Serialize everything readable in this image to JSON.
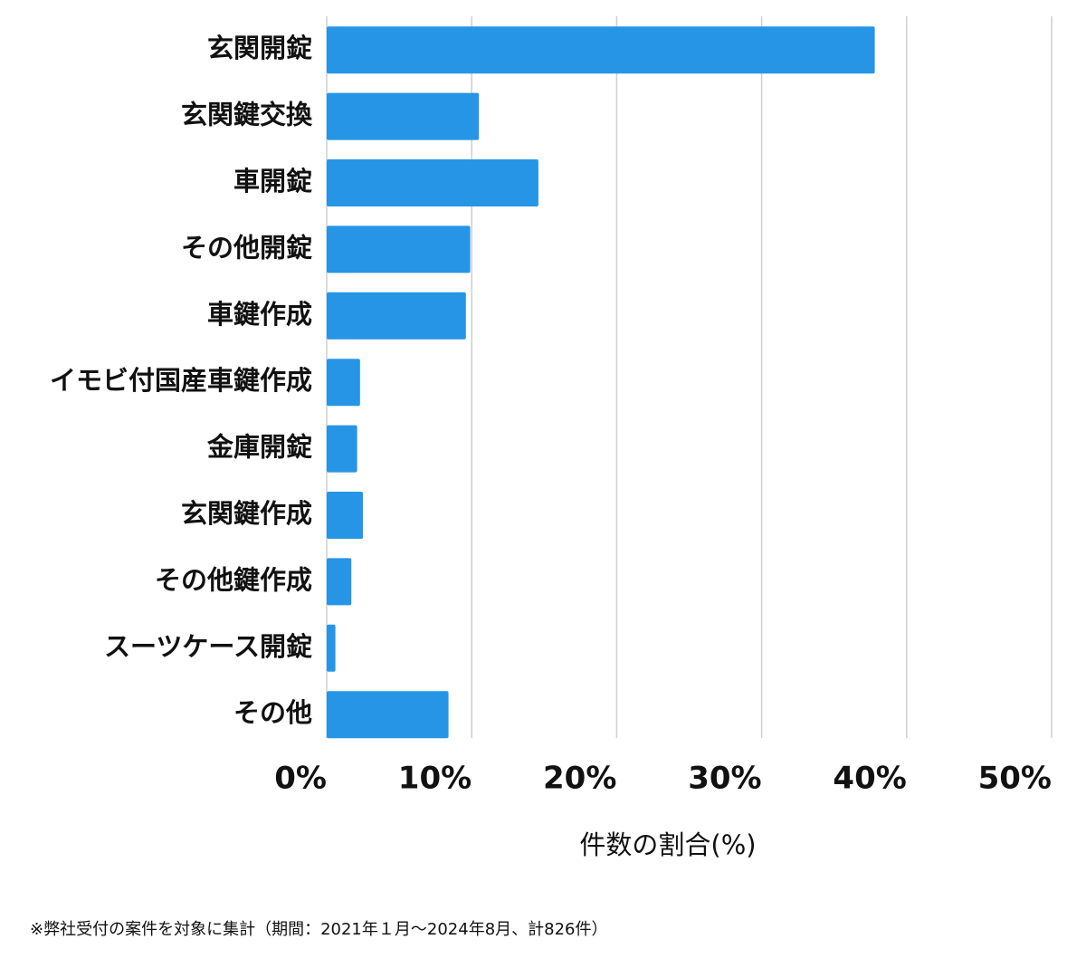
{
  "chart_data": {
    "type": "bar",
    "orientation": "horizontal",
    "categories": [
      "玄関開錠",
      "玄関鍵交換",
      "車開錠",
      "その他開錠",
      "車鍵作成",
      "イモビ付国産車鍵作成",
      "金庫開錠",
      "玄関鍵作成",
      "その他鍵作成",
      "スーツケース開錠",
      "その他"
    ],
    "values": [
      37.8,
      10.5,
      14.6,
      9.9,
      9.6,
      2.3,
      2.1,
      2.5,
      1.7,
      0.6,
      8.4
    ],
    "color": "#2695e6",
    "xlim": [
      0,
      50
    ],
    "xticks": [
      {
        "value": 0,
        "label": "0%"
      },
      {
        "value": 10,
        "label": "10%"
      },
      {
        "value": 20,
        "label": "20%"
      },
      {
        "value": 30,
        "label": "30%"
      },
      {
        "value": 40,
        "label": "40%"
      },
      {
        "value": 50,
        "label": "50%"
      }
    ],
    "xlabel": "件数の割合(%)",
    "grid": true,
    "footnote": "※弊社受付の案件を対象に集計（期間：2021年１月～2024年8月、計826件）"
  }
}
